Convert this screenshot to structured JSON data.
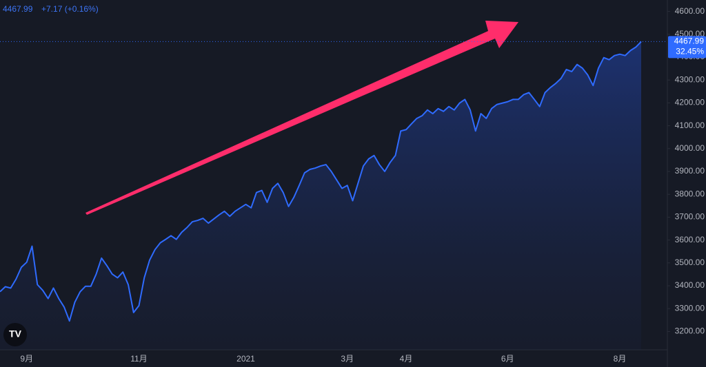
{
  "chart_data": {
    "type": "line",
    "header": {
      "price": "4467.99",
      "change": "+7.17 (+0.16%)"
    },
    "badge": {
      "price": "4467.99",
      "percent": "32.45%"
    },
    "categories": [
      null,
      null,
      null,
      null,
      null,
      "9月",
      null,
      null,
      null,
      null,
      null,
      null,
      null,
      null,
      null,
      null,
      null,
      null,
      null,
      null,
      null,
      null,
      null,
      null,
      null,
      null,
      "11月",
      null,
      null,
      null,
      null,
      null,
      null,
      null,
      null,
      null,
      null,
      null,
      null,
      null,
      null,
      null,
      null,
      null,
      null,
      null,
      "2021",
      null,
      null,
      null,
      null,
      null,
      null,
      null,
      null,
      null,
      null,
      null,
      null,
      null,
      null,
      null,
      null,
      null,
      null,
      "3月",
      null,
      null,
      null,
      null,
      null,
      null,
      null,
      null,
      null,
      null,
      "4月",
      null,
      null,
      null,
      null,
      null,
      null,
      null,
      null,
      null,
      null,
      null,
      null,
      null,
      null,
      null,
      null,
      null,
      null,
      "6月",
      null,
      null,
      null,
      null,
      null,
      null,
      null,
      null,
      null,
      null,
      null,
      null,
      null,
      null,
      null,
      null,
      null,
      null,
      null,
      null,
      "8月",
      null,
      null,
      null,
      null
    ],
    "series": [
      {
        "color": "#2f6bff",
        "values": [
          3374,
          3396,
          3390,
          3429,
          3481,
          3503,
          3573,
          3405,
          3380,
          3344,
          3390,
          3344,
          3307,
          3246,
          3328,
          3374,
          3398,
          3398,
          3451,
          3521,
          3488,
          3451,
          3435,
          3460,
          3405,
          3283,
          3313,
          3435,
          3512,
          3558,
          3588,
          3603,
          3619,
          3603,
          3634,
          3655,
          3680,
          3686,
          3695,
          3674,
          3692,
          3710,
          3726,
          3704,
          3726,
          3741,
          3756,
          3741,
          3808,
          3817,
          3765,
          3826,
          3848,
          3808,
          3747,
          3787,
          3839,
          3894,
          3909,
          3915,
          3924,
          3930,
          3900,
          3863,
          3826,
          3839,
          3772,
          3848,
          3924,
          3955,
          3970,
          3930,
          3900,
          3939,
          3970,
          4077,
          4083,
          4108,
          4132,
          4144,
          4169,
          4153,
          4175,
          4163,
          4184,
          4169,
          4199,
          4215,
          4169,
          4077,
          4153,
          4132,
          4175,
          4193,
          4199,
          4205,
          4215,
          4215,
          4236,
          4245,
          4215,
          4184,
          4245,
          4267,
          4285,
          4307,
          4346,
          4337,
          4368,
          4352,
          4322,
          4276,
          4352,
          4398,
          4389,
          4407,
          4413,
          4407,
          4429,
          4444,
          4467.99
        ]
      }
    ],
    "ylim": [
      3120,
      4650
    ],
    "yticks": [
      {
        "value": 3200,
        "label": "3200.00"
      },
      {
        "value": 3300,
        "label": "3300.00"
      },
      {
        "value": 3400,
        "label": "3400.00"
      },
      {
        "value": 3500,
        "label": "3500.00"
      },
      {
        "value": 3600,
        "label": "3600.00"
      },
      {
        "value": 3700,
        "label": "3700.00"
      },
      {
        "value": 3800,
        "label": "3800.00"
      },
      {
        "value": 3900,
        "label": "3900.00"
      },
      {
        "value": 4000,
        "label": "4000.00"
      },
      {
        "value": 4100,
        "label": "4100.00"
      },
      {
        "value": 4200,
        "label": "4200.00"
      },
      {
        "value": 4300,
        "label": "4300.00"
      },
      {
        "value": 4400,
        "label": "4400.00"
      },
      {
        "value": 4500,
        "label": "4500.00"
      },
      {
        "value": 4600,
        "label": "4600.00"
      }
    ],
    "grid": false
  }
}
